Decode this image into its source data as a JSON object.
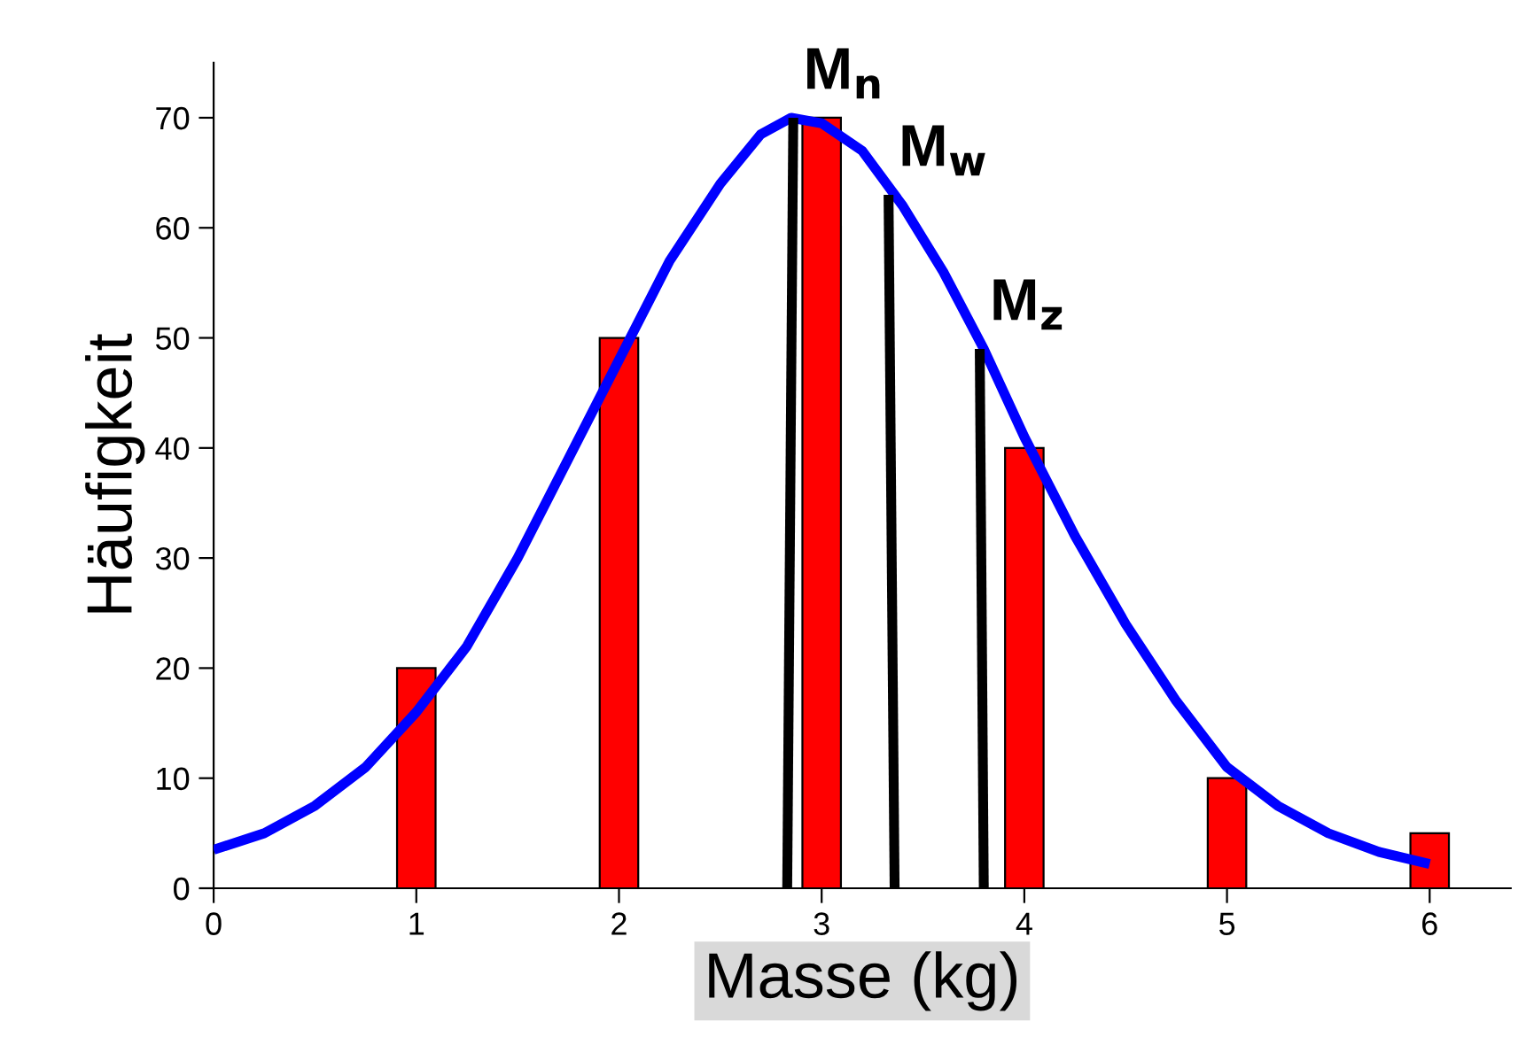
{
  "chart_data": {
    "type": "bar",
    "xlabel": "Masse (kg)",
    "ylabel": "Häufigkeit",
    "xlim": [
      0,
      6.4
    ],
    "xticks": [
      0,
      1,
      2,
      3,
      4,
      5,
      6
    ],
    "ylim": [
      0,
      75
    ],
    "yticks": [
      0,
      10,
      20,
      30,
      40,
      50,
      60,
      70
    ],
    "grid": false,
    "legend": false,
    "series": [
      {
        "color": "#ff0000",
        "x": [
          1,
          2,
          3,
          4,
          5,
          6
        ],
        "values": [
          20,
          50,
          70,
          40,
          10,
          5
        ]
      },
      {
        "type": "line",
        "color": "#0000ff",
        "x": [
          0,
          0.25,
          0.5,
          0.75,
          1,
          1.25,
          1.5,
          1.75,
          2,
          2.25,
          2.5,
          2.7,
          2.85,
          3,
          3.2,
          3.4,
          3.6,
          3.8,
          4,
          4.25,
          4.5,
          4.75,
          5,
          5.25,
          5.5,
          5.75,
          6
        ],
        "values": [
          3.5,
          5,
          7.5,
          11,
          16,
          22,
          30,
          39,
          48,
          57,
          64,
          68.5,
          70,
          69.5,
          67,
          62,
          56,
          49,
          41,
          32,
          24,
          17,
          11,
          7.5,
          5,
          3.3,
          2.2
        ]
      },
      {
        "type": "line",
        "name": "M$_{n}$",
        "color": "#000000",
        "x": [
          2.83,
          2.86
        ],
        "values": [
          0,
          70
        ]
      },
      {
        "type": "line",
        "name": "M$_{w}$",
        "color": "#000000",
        "x": [
          3.36,
          3.33
        ],
        "values": [
          0,
          63
        ]
      },
      {
        "type": "line",
        "name": "M$_{z}$",
        "color": "#000000",
        "x": [
          3.8,
          3.78
        ],
        "values": [
          0,
          49
        ]
      }
    ]
  }
}
